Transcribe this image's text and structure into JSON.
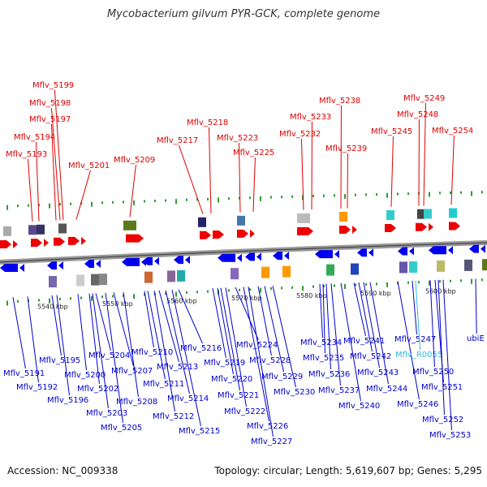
{
  "title": "Mycobacterium gilvum PYR-GCK, complete genome",
  "accession": "Accession: NC_009338",
  "summary": "Topology: circular; Length: 5,619,607 bp; Genes: 5,295",
  "kbp_ticks": [
    "5540 kbp",
    "5550 kbp",
    "5560 kbp",
    "5570 kbp",
    "5580 kbp",
    "5590 kbp",
    "5600 kbp"
  ],
  "colors": {
    "label_top": "#dd0000",
    "label_bottom": "#0000cc",
    "label_rna": "#33bbdd",
    "arrow_fwd": "#ee0000",
    "arrow_rev": "#0000ee",
    "backbone": "#888888",
    "tick": "#228822"
  },
  "top_labels": [
    "Mflv_5199",
    "Mflv_5198",
    "Mflv_5197",
    "Mflv_5194",
    "Mflv_5193",
    "Mflv_5201",
    "Mflv_5209",
    "Mflv_5217",
    "Mflv_5218",
    "Mflv_5223",
    "Mflv_5225",
    "Mflv_5233",
    "Mflv_5232",
    "Mflv_5238",
    "Mflv_5239",
    "Mflv_5245",
    "Mflv_5249",
    "Mflv_5248",
    "Mflv_5254"
  ],
  "bottom_labels": [
    "Mflv_5191",
    "Mflv_5192",
    "Mflv_5195",
    "Mflv_5196",
    "Mflv_5200",
    "Mflv_5202",
    "Mflv_5203",
    "Mflv_5204",
    "Mflv_5205",
    "Mflv_5207",
    "Mflv_5208",
    "Mflv_5210",
    "Mflv_5211",
    "Mflv_5212",
    "Mflv_5213",
    "Mflv_5214",
    "Mflv_5215",
    "Mflv_5216",
    "Mflv_5219",
    "Mflv_5220",
    "Mflv_5221",
    "Mflv_5222",
    "Mflv_5224",
    "Mflv_5226",
    "Mflv_5227",
    "Mflv_5228",
    "Mflv_5229",
    "Mflv_5230",
    "Mflv_5234",
    "Mflv_5235",
    "Mflv_5236",
    "Mflv_5237",
    "Mflv_5240",
    "Mflv_5241",
    "Mflv_5242",
    "Mflv_5243",
    "Mflv_5244",
    "Mflv_5246",
    "Mflv_5247",
    "Mflv_R0055",
    "Mflv_5250",
    "Mflv_5251",
    "Mflv_5252",
    "Mflv_5253",
    "ubiE"
  ]
}
